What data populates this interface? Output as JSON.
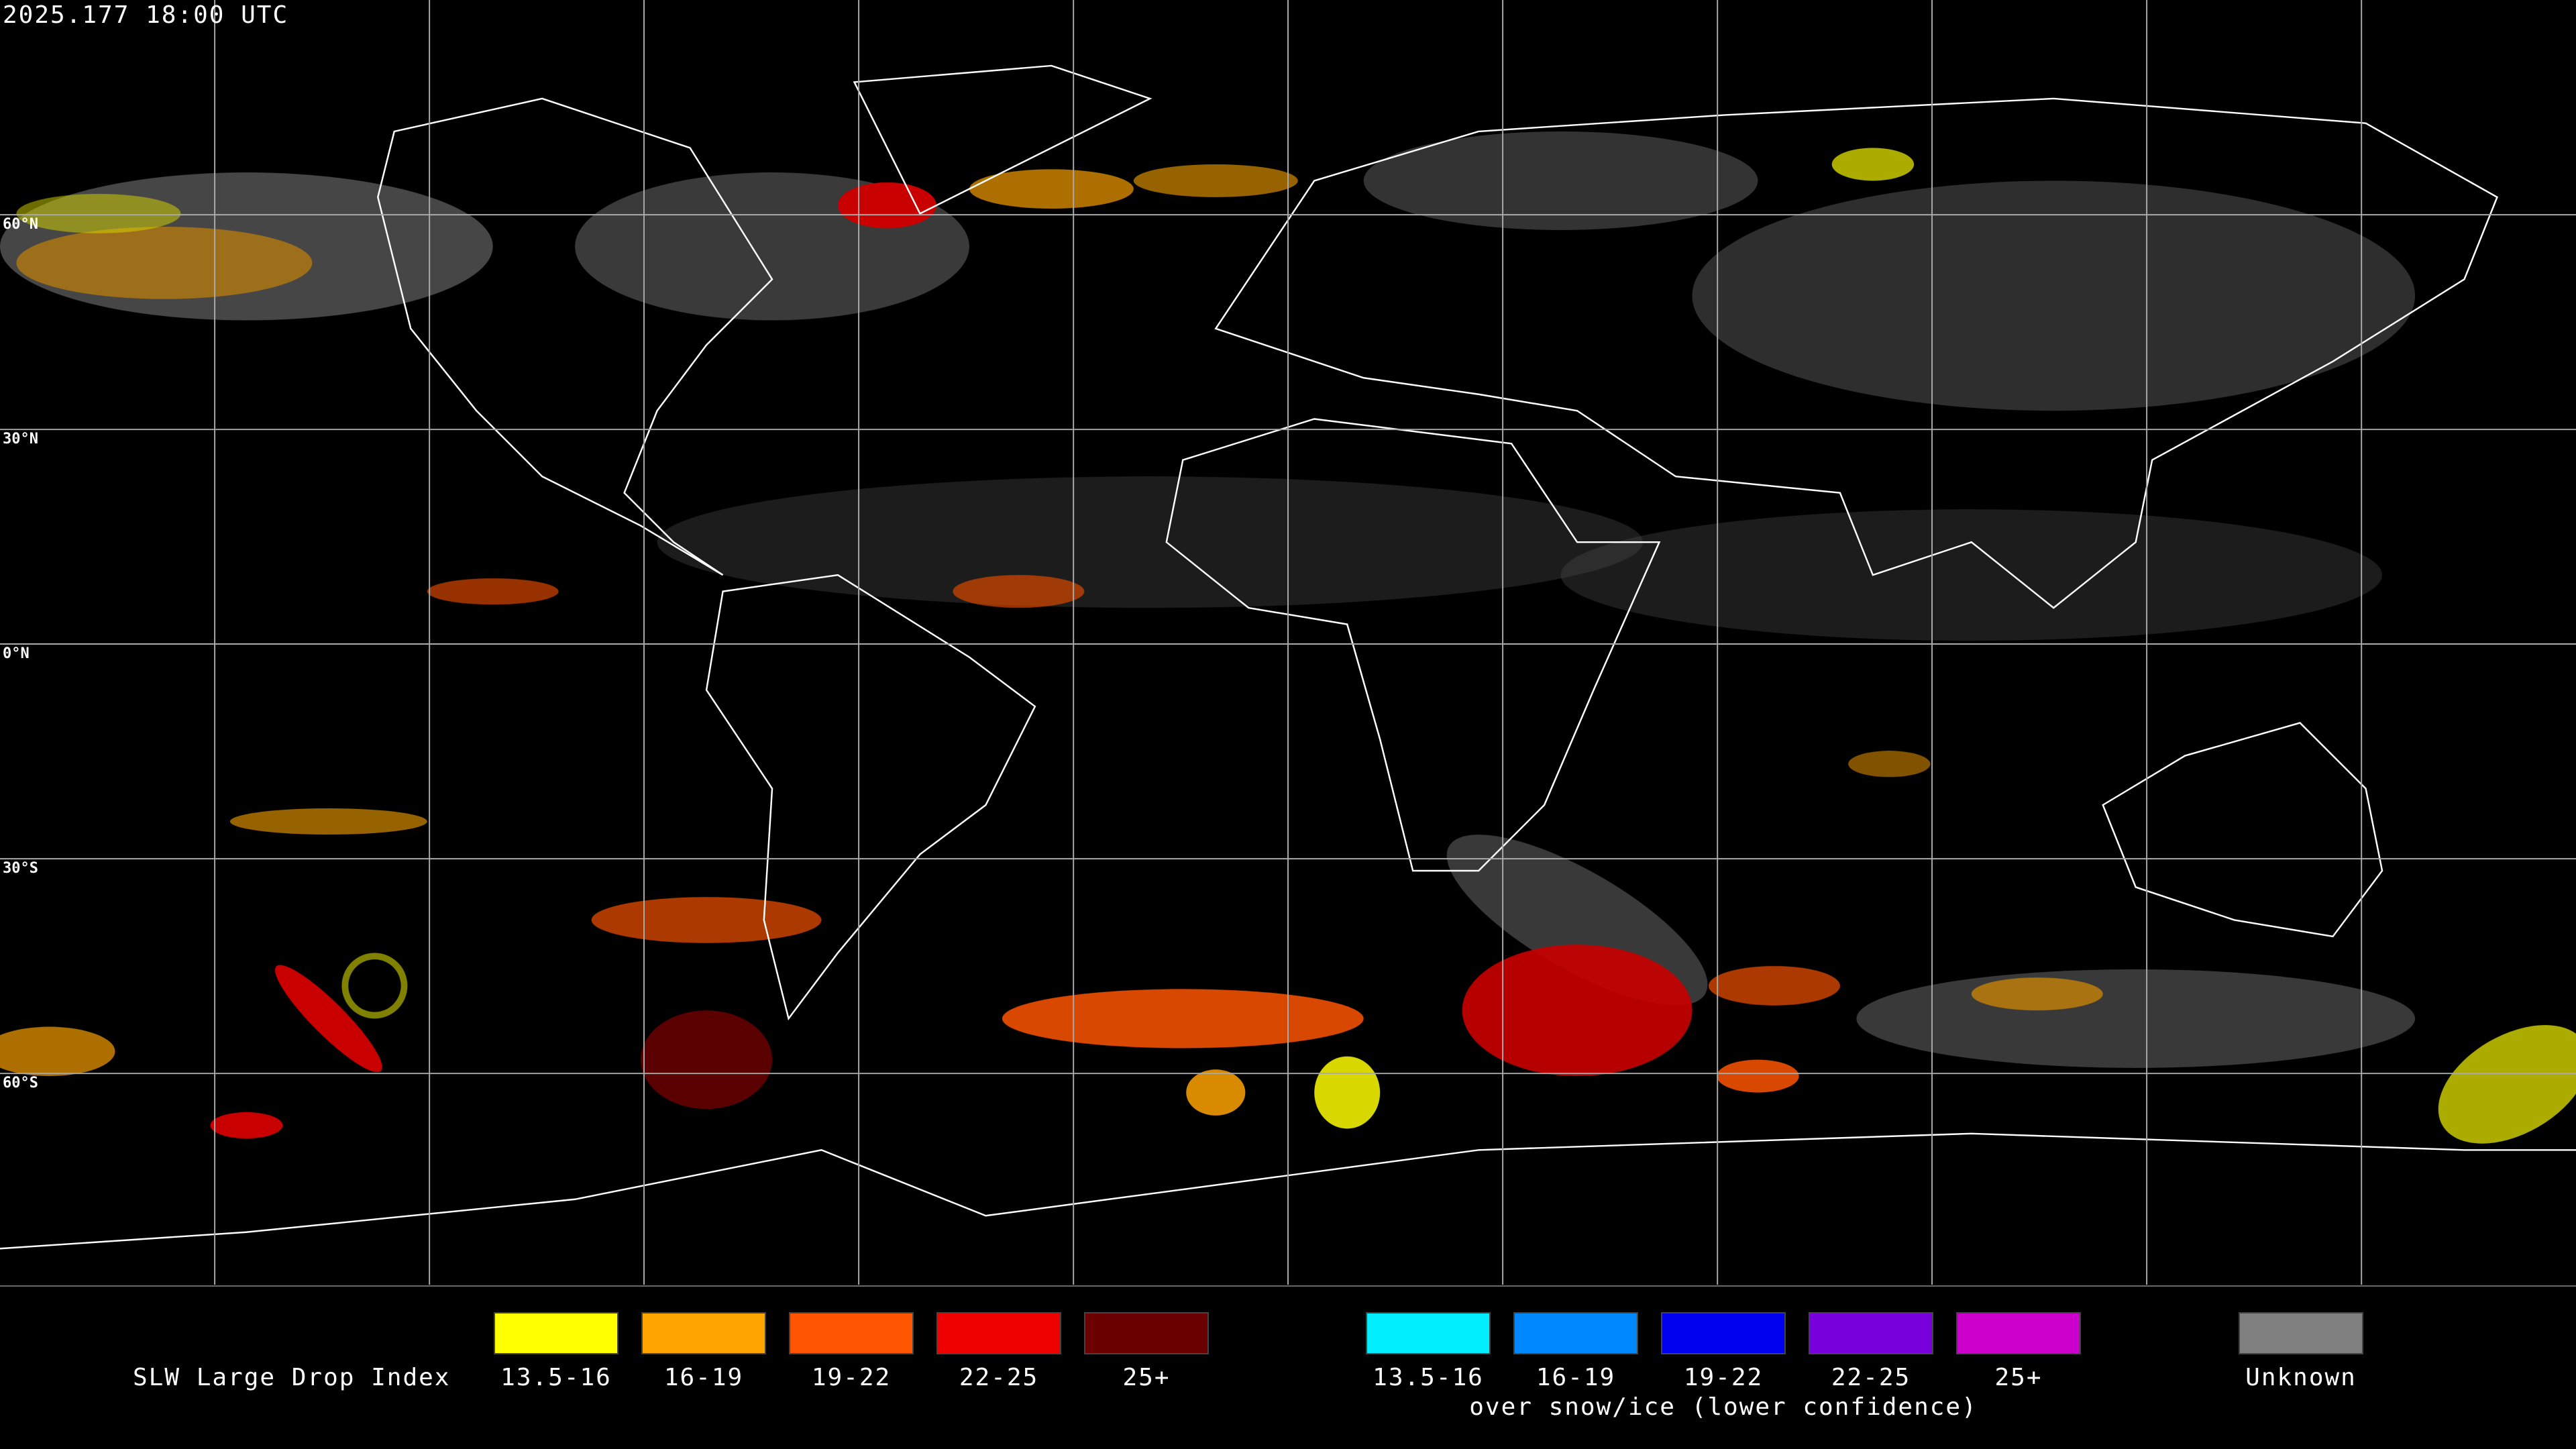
{
  "header": {
    "timestamp": "2025.177 18:00 UTC"
  },
  "lat_labels": [
    "60°N",
    "30°N",
    "0°N",
    "30°S",
    "60°S"
  ],
  "legend": {
    "title": "SLW Large Drop Index",
    "groups": [
      {
        "items": [
          {
            "label": "13.5-16",
            "color": "#ffff00"
          },
          {
            "label": "16-19",
            "color": "#ffa500"
          },
          {
            "label": "19-22",
            "color": "#ff5500"
          },
          {
            "label": "22-25",
            "color": "#ee0000"
          },
          {
            "label": "25+",
            "color": "#6b0000"
          }
        ]
      },
      {
        "items": [
          {
            "label": "13.5-16",
            "color": "#00eeff"
          },
          {
            "label": "16-19",
            "color": "#0088ff"
          },
          {
            "label": "19-22",
            "color": "#0000ee"
          },
          {
            "label": "22-25",
            "color": "#7700dd"
          },
          {
            "label": "25+",
            "color": "#cc00cc"
          }
        ],
        "subtitle": "over snow/ice (lower confidence)"
      },
      {
        "items": [
          {
            "label": "Unknown",
            "color": "#808080"
          }
        ]
      }
    ]
  }
}
